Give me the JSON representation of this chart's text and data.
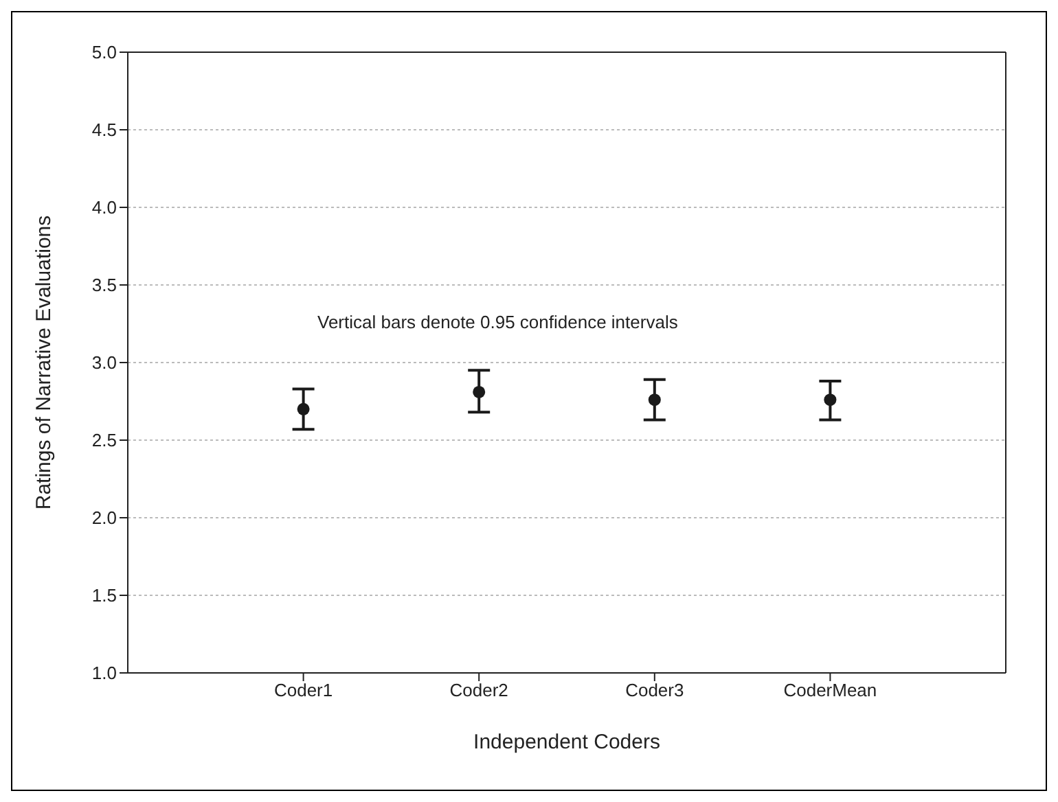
{
  "chart_data": {
    "type": "scatter",
    "xlabel": "Independent Coders",
    "ylabel": "Ratings of Narrative Evaluations",
    "categories": [
      "Coder1",
      "Coder2",
      "Coder3",
      "CoderMean"
    ],
    "series": [
      {
        "color": "#1a1a1a",
        "values": [
          2.7,
          2.81,
          2.76,
          2.76
        ],
        "errors": [
          [
            2.57,
            2.83
          ],
          [
            2.68,
            2.95
          ],
          [
            2.63,
            2.89
          ],
          [
            2.63,
            2.88
          ]
        ]
      }
    ],
    "ylim": [
      1.0,
      5.0
    ],
    "yticks": [
      {
        "value": 1,
        "label": "1.0"
      },
      {
        "value": 1.5,
        "label": "1.5"
      },
      {
        "value": 2,
        "label": "2.0"
      },
      {
        "value": 2.5,
        "label": "2.5"
      },
      {
        "value": 3,
        "label": "3.0"
      },
      {
        "value": 3.5,
        "label": "3.5"
      },
      {
        "value": 4,
        "label": "4.0"
      },
      {
        "value": 4.5,
        "label": "4.5"
      },
      {
        "value": 5,
        "label": "5.0"
      }
    ],
    "grid": "y",
    "marker": "circle",
    "annotations": [
      "Vertical bars denote 0.95 confidence intervals"
    ]
  }
}
